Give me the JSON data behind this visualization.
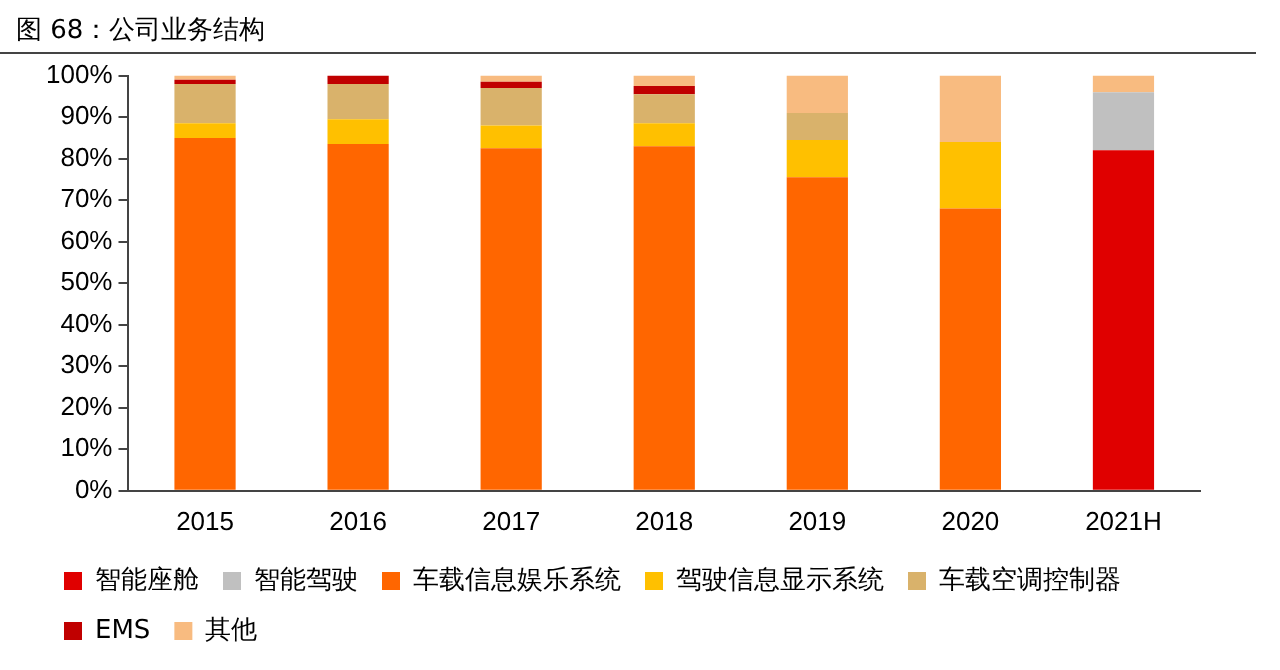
{
  "chart_data": {
    "type": "bar",
    "title": "图 68：公司业务结构",
    "stacked": true,
    "categories": [
      "2015",
      "2016",
      "2017",
      "2018",
      "2019",
      "2020",
      "2021H"
    ],
    "series": [
      {
        "name": "智能座舱",
        "color": "#e00000",
        "values": [
          null,
          null,
          null,
          null,
          null,
          null,
          82
        ]
      },
      {
        "name": "智能驾驶",
        "color": "#c0c0c0",
        "values": [
          null,
          null,
          null,
          null,
          null,
          null,
          14
        ]
      },
      {
        "name": "车载信息娱乐系统",
        "color": "#ff6600",
        "values": [
          85,
          83.5,
          82.5,
          83,
          75.5,
          68,
          null
        ]
      },
      {
        "name": "驾驶信息显示系统",
        "color": "#ffc000",
        "values": [
          3.5,
          6,
          5.5,
          5.5,
          9,
          16,
          null
        ]
      },
      {
        "name": "车载空调控制器",
        "color": "#d9b26b",
        "values": [
          9.5,
          8.5,
          9,
          7,
          6.5,
          null,
          null
        ]
      },
      {
        "name": "EMS",
        "color": "#c00000",
        "values": [
          1,
          2,
          1.5,
          2,
          null,
          null,
          null
        ]
      },
      {
        "name": "其他",
        "color": "#f8bb80",
        "values": [
          1,
          null,
          1.5,
          2.5,
          9,
          16,
          4
        ]
      }
    ],
    "ylim": [
      0,
      100
    ],
    "yticks": [
      {
        "value": 0,
        "label": "0%"
      },
      {
        "value": 10,
        "label": "10%"
      },
      {
        "value": 20,
        "label": "20%"
      },
      {
        "value": 30,
        "label": "30%"
      },
      {
        "value": 40,
        "label": "40%"
      },
      {
        "value": 50,
        "label": "50%"
      },
      {
        "value": 60,
        "label": "60%"
      },
      {
        "value": 70,
        "label": "70%"
      },
      {
        "value": 80,
        "label": "80%"
      },
      {
        "value": 90,
        "label": "90%"
      },
      {
        "value": 100,
        "label": "100%"
      }
    ],
    "grid": false,
    "legend": "bottom"
  }
}
